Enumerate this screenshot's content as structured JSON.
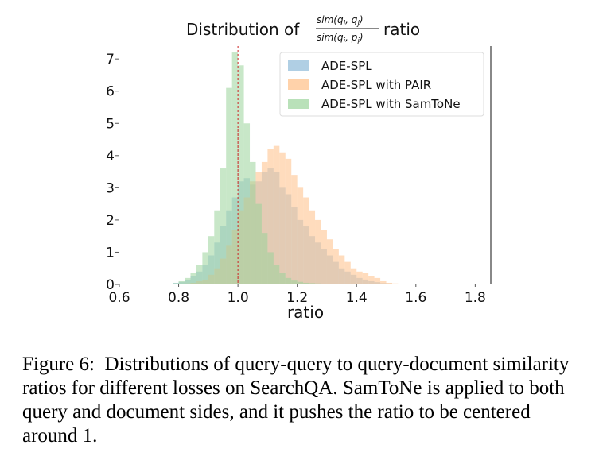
{
  "chart_data": {
    "type": "histogram",
    "title_prefix": "Distribution of",
    "title_numerator": "sim(q",
    "title_numerator_sub1": "i",
    "title_numerator_mid": ", q",
    "title_numerator_sub2": "j",
    "title_numerator_end": ")",
    "title_denominator": "sim(q",
    "title_denominator_sub1": "i",
    "title_denominator_mid": ", p",
    "title_denominator_sub2": "j",
    "title_denominator_end": ")",
    "title_suffix": "ratio",
    "xlabel": "ratio",
    "ylabel": "",
    "xlim": [
      0.6,
      1.85
    ],
    "ylim": [
      0,
      7.3
    ],
    "x_ticks": [
      0.6,
      0.8,
      1.0,
      1.2,
      1.4,
      1.6,
      1.8
    ],
    "x_tick_labels": [
      "0.6",
      "0.8",
      "1.0",
      "1.2",
      "1.4",
      "1.6",
      "1.8"
    ],
    "y_ticks": [
      0,
      1,
      2,
      3,
      4,
      5,
      6,
      7
    ],
    "y_tick_labels": [
      "0",
      "1",
      "2",
      "3",
      "4",
      "5",
      "6",
      "7"
    ],
    "reference_line_x": 1.0,
    "legend_position": "top-right",
    "series": [
      {
        "name": "ADE-SPL",
        "color": "#8fbbd9",
        "bin_width": 0.02,
        "bin_starts": [
          0.76,
          0.78,
          0.8,
          0.82,
          0.84,
          0.86,
          0.88,
          0.9,
          0.92,
          0.94,
          0.96,
          0.98,
          1.0,
          1.02,
          1.04,
          1.06,
          1.08,
          1.1,
          1.12,
          1.14,
          1.16,
          1.18,
          1.2,
          1.22,
          1.24,
          1.26,
          1.28,
          1.3,
          1.32,
          1.34,
          1.36,
          1.38,
          1.4,
          1.42,
          1.44,
          1.46,
          1.48,
          1.5,
          1.52
        ],
        "values": [
          0.02,
          0.05,
          0.08,
          0.15,
          0.25,
          0.4,
          0.6,
          0.9,
          1.3,
          1.8,
          2.3,
          2.7,
          3.2,
          3.3,
          3.1,
          3.2,
          3.5,
          3.6,
          3.5,
          3.0,
          2.8,
          2.4,
          2.0,
          1.8,
          1.5,
          1.3,
          1.1,
          0.9,
          0.7,
          0.5,
          0.4,
          0.3,
          0.2,
          0.15,
          0.1,
          0.07,
          0.04,
          0.03,
          0.01
        ]
      },
      {
        "name": "ADE-SPL with PAIR",
        "color": "#ffbf86",
        "bin_width": 0.02,
        "bin_starts": [
          0.8,
          0.82,
          0.84,
          0.86,
          0.88,
          0.9,
          0.92,
          0.94,
          0.96,
          0.98,
          1.0,
          1.02,
          1.04,
          1.06,
          1.08,
          1.1,
          1.12,
          1.14,
          1.16,
          1.18,
          1.2,
          1.22,
          1.24,
          1.26,
          1.28,
          1.3,
          1.32,
          1.34,
          1.36,
          1.38,
          1.4,
          1.42,
          1.44,
          1.46,
          1.48,
          1.5,
          1.52
        ],
        "values": [
          0.01,
          0.03,
          0.05,
          0.1,
          0.15,
          0.3,
          0.5,
          0.8,
          1.2,
          1.7,
          2.3,
          2.7,
          3.2,
          3.5,
          3.8,
          4.2,
          4.3,
          4.1,
          3.9,
          3.4,
          3.0,
          2.7,
          2.3,
          2.0,
          1.7,
          1.4,
          1.1,
          0.9,
          0.7,
          0.5,
          0.4,
          0.35,
          0.25,
          0.2,
          0.1,
          0.05,
          0.03
        ]
      },
      {
        "name": "ADE-SPL with SamToNe",
        "color": "#9bd49b",
        "bin_width": 0.02,
        "bin_starts": [
          0.76,
          0.78,
          0.8,
          0.82,
          0.84,
          0.86,
          0.88,
          0.9,
          0.92,
          0.94,
          0.96,
          0.98,
          1.0,
          1.02,
          1.04,
          1.06,
          1.08,
          1.1,
          1.12,
          1.14,
          1.16,
          1.18,
          1.2,
          1.22,
          1.24,
          1.26,
          1.28,
          1.3
        ],
        "values": [
          0.02,
          0.04,
          0.1,
          0.2,
          0.35,
          0.6,
          1.0,
          1.5,
          2.3,
          3.6,
          6.1,
          7.2,
          6.8,
          5.0,
          3.8,
          2.5,
          1.6,
          1.0,
          0.6,
          0.35,
          0.2,
          0.12,
          0.08,
          0.05,
          0.04,
          0.03,
          0.02,
          0.01
        ]
      }
    ]
  },
  "caption": {
    "label": "Figure 6:",
    "text": "Distributions of query-query to query-document similarity ratios for different losses on SearchQA. SamToNe is applied to both query and document sides, and it pushes the ratio to be centered around 1."
  }
}
